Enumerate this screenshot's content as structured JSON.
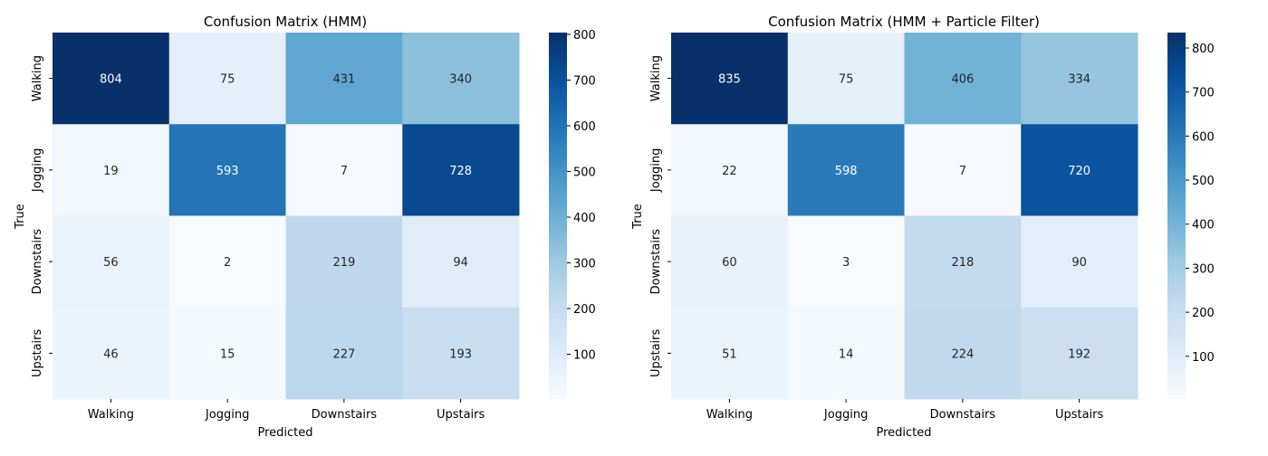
{
  "chart_data": [
    {
      "type": "heatmap",
      "title": "Confusion Matrix (HMM)",
      "xlabel": "Predicted",
      "ylabel": "True",
      "x_categories": [
        "Walking",
        "Jogging",
        "Downstairs",
        "Upstairs"
      ],
      "y_categories": [
        "Walking",
        "Jogging",
        "Downstairs",
        "Upstairs"
      ],
      "values": [
        [
          804,
          75,
          431,
          340
        ],
        [
          19,
          593,
          7,
          728
        ],
        [
          56,
          2,
          219,
          94
        ],
        [
          46,
          15,
          227,
          193
        ]
      ],
      "colormap": "Blues",
      "color_range": [
        2,
        804
      ],
      "colorbar_ticks": [
        100,
        200,
        300,
        400,
        500,
        600,
        700,
        800
      ]
    },
    {
      "type": "heatmap",
      "title": "Confusion Matrix (HMM + Particle Filter)",
      "xlabel": "Predicted",
      "ylabel": "True",
      "x_categories": [
        "Walking",
        "Jogging",
        "Downstairs",
        "Upstairs"
      ],
      "y_categories": [
        "Walking",
        "Jogging",
        "Downstairs",
        "Upstairs"
      ],
      "values": [
        [
          835,
          75,
          406,
          334
        ],
        [
          22,
          598,
          7,
          720
        ],
        [
          60,
          3,
          218,
          90
        ],
        [
          51,
          14,
          224,
          192
        ]
      ],
      "colormap": "Blues",
      "color_range": [
        3,
        835
      ],
      "colorbar_ticks": [
        100,
        200,
        300,
        400,
        500,
        600,
        700,
        800
      ]
    }
  ],
  "colors": {
    "blues_stops": [
      "#f7fbff",
      "#deebf7",
      "#c6dbef",
      "#9ecae1",
      "#6baed6",
      "#4292c6",
      "#2171b5",
      "#08519c",
      "#08306b"
    ]
  }
}
